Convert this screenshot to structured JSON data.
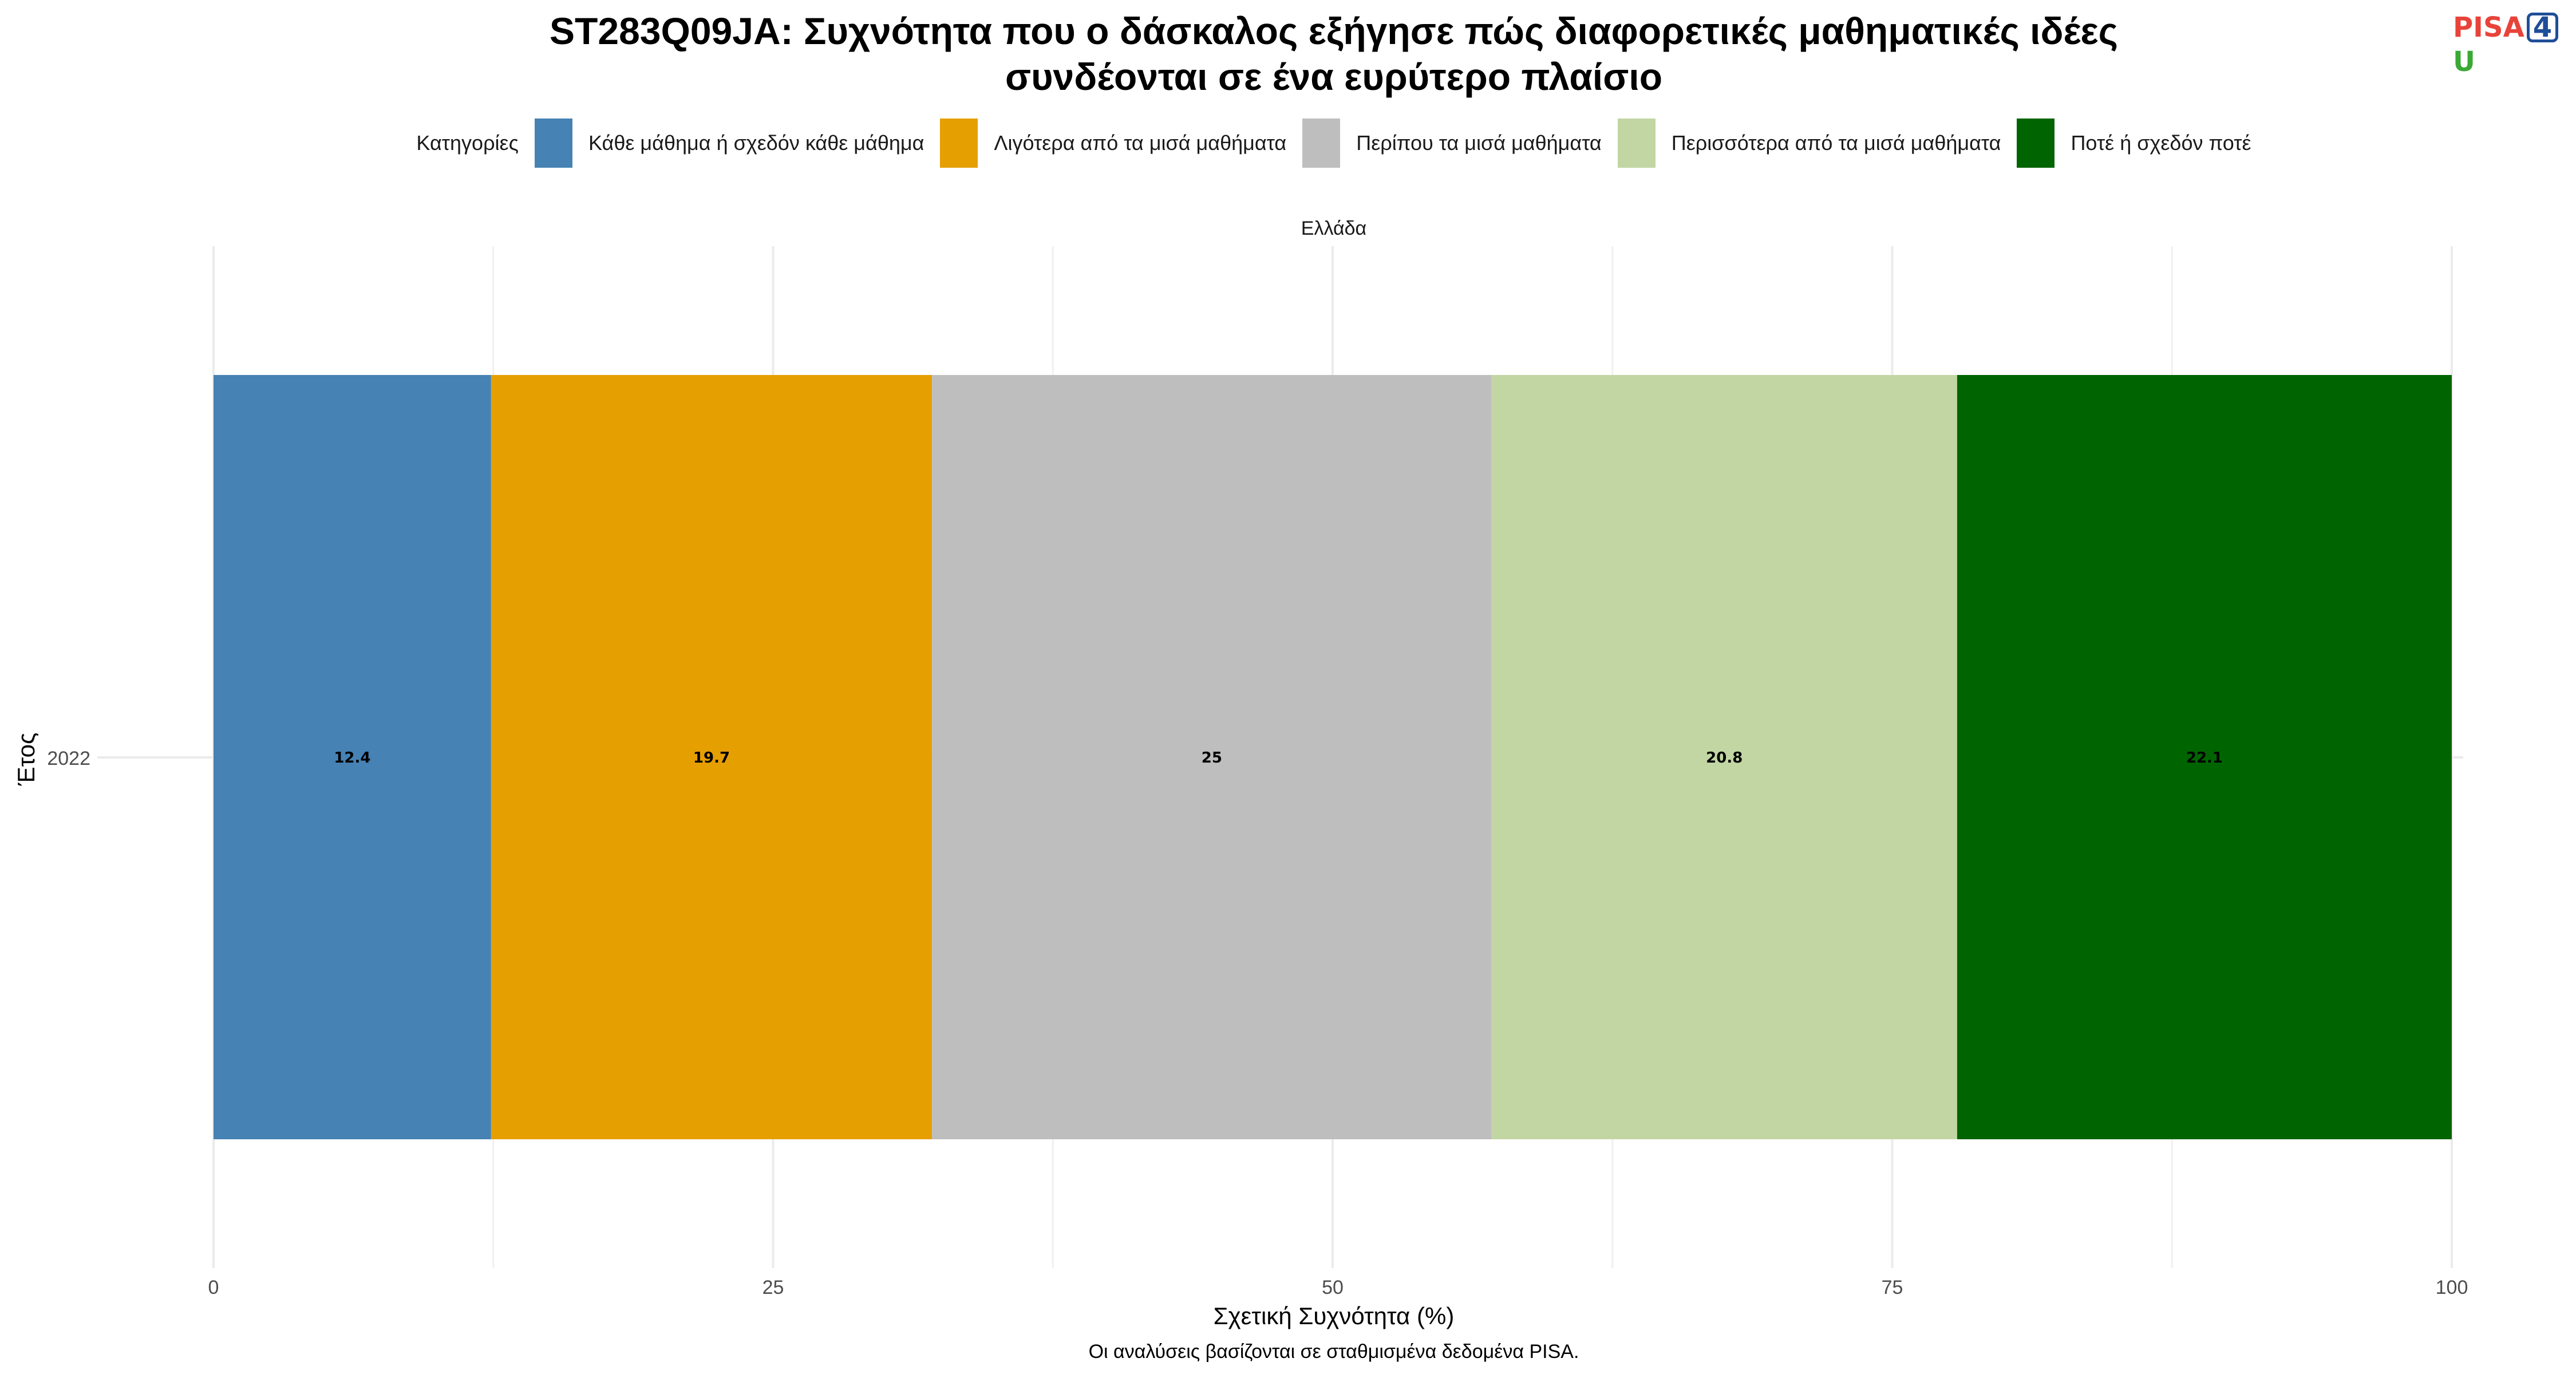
{
  "title_line1": "ST283Q09JA: Συχνότητα που ο δάσκαλος εξήγησε πώς διαφορετικές μαθηματικές ιδέες",
  "title_line2": "συνδέονται σε ένα ευρύτερο πλαίσιο",
  "logo": "PISA4U",
  "legend_title": "Κατηγορίες",
  "facet_label": "Ελλάδα",
  "caption": "Οι αναλύσεις βασίζονται σε σταθμισμένα δεδομένα PISA.",
  "chart_data": {
    "type": "bar",
    "orientation": "horizontal",
    "stacked": true,
    "title": "ST283Q09JA: Συχνότητα που ο δάσκαλος εξήγησε πώς διαφορετικές μαθηματικές ιδέες συνδέονται σε ένα ευρύτερο πλαίσιο",
    "xlabel": "Σχετική Συχνότητα (%)",
    "ylabel": "Έτος",
    "xlim": [
      0,
      100
    ],
    "xticks": [
      0,
      25,
      50,
      75,
      100
    ],
    "categories": [
      "2022"
    ],
    "legend_position": "top",
    "grid": true,
    "series": [
      {
        "name": "Κάθε μάθημα ή σχεδόν κάθε μάθημα",
        "values": [
          12.4
        ],
        "color": "#4682b4"
      },
      {
        "name": "Λιγότερα από τα μισά μαθήματα",
        "values": [
          19.7
        ],
        "color": "#e69f00"
      },
      {
        "name": "Περίπου τα μισά μαθήματα",
        "values": [
          25
        ],
        "color": "#bebebe"
      },
      {
        "name": "Περισσότερα από τα μισά μαθήματα",
        "values": [
          20.8
        ],
        "color": "#c2d6a4"
      },
      {
        "name": "Ποτέ ή σχεδόν ποτέ",
        "values": [
          22.1
        ],
        "color": "#006400"
      }
    ]
  }
}
